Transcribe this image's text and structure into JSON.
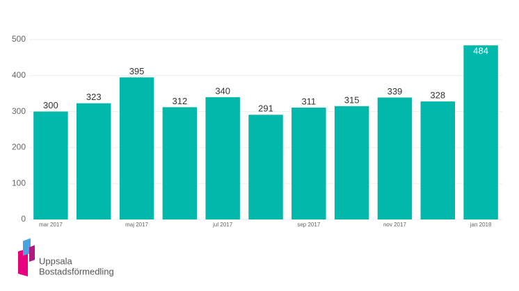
{
  "chart_data": {
    "type": "bar",
    "categories": [
      "mar 2017",
      null,
      "maj 2017",
      null,
      "jul 2017",
      null,
      "sep 2017",
      null,
      "nov 2017",
      null,
      "jan 2018"
    ],
    "values": [
      300,
      323,
      395,
      312,
      340,
      291,
      311,
      315,
      339,
      328,
      484
    ],
    "color": "#01b8aa",
    "ylim": [
      0,
      500
    ],
    "yticks": [
      0,
      100,
      200,
      300,
      400,
      500
    ],
    "grid": true
  },
  "logo": {
    "line1": "Uppsala",
    "line2": "Bostadsförmedling"
  }
}
